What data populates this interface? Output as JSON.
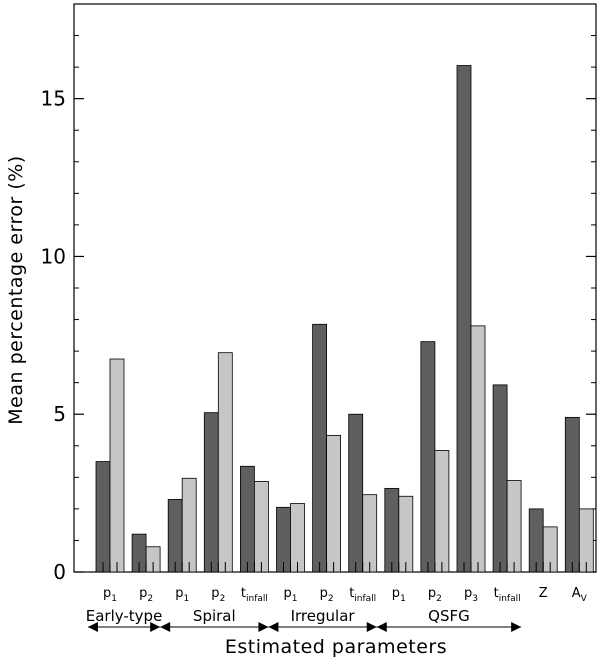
{
  "chart_data": {
    "type": "bar",
    "title": "",
    "xlabel": "Estimated parameters",
    "ylabel": "Mean percentage error (%)",
    "ylim": [
      0,
      18
    ],
    "yticks": [
      0,
      5,
      10,
      15
    ],
    "grid": false,
    "categories": [
      {
        "base": "p",
        "sub": "1"
      },
      {
        "base": "p",
        "sub": "2"
      },
      {
        "base": "p",
        "sub": "1"
      },
      {
        "base": "p",
        "sub": "2"
      },
      {
        "base": "t",
        "sub": "infall"
      },
      {
        "base": "p",
        "sub": "1"
      },
      {
        "base": "p",
        "sub": "2"
      },
      {
        "base": "t",
        "sub": "infall"
      },
      {
        "base": "p",
        "sub": "1"
      },
      {
        "base": "p",
        "sub": "2"
      },
      {
        "base": "p",
        "sub": "3"
      },
      {
        "base": "t",
        "sub": "infall"
      },
      {
        "base": "Z",
        "sub": ""
      },
      {
        "base": "A",
        "sub": "V"
      }
    ],
    "series": [
      {
        "name": "dark",
        "color": "#5f5f5f",
        "values": [
          3.5,
          1.2,
          2.3,
          5.05,
          3.35,
          2.05,
          7.85,
          5.0,
          2.65,
          7.3,
          16.05,
          5.93,
          2.0,
          4.9
        ]
      },
      {
        "name": "light",
        "color": "#c6c6c6",
        "values": [
          6.75,
          0.8,
          2.97,
          6.95,
          2.87,
          2.17,
          4.33,
          2.45,
          2.4,
          3.85,
          7.8,
          2.9,
          1.43,
          2.0
        ]
      }
    ],
    "groups": [
      {
        "label": "Early-type",
        "start": 0,
        "end": 1
      },
      {
        "label": "Spiral",
        "start": 2,
        "end": 4
      },
      {
        "label": "Irregular",
        "start": 5,
        "end": 7
      },
      {
        "label": "QSFG",
        "start": 8,
        "end": 11
      }
    ]
  }
}
